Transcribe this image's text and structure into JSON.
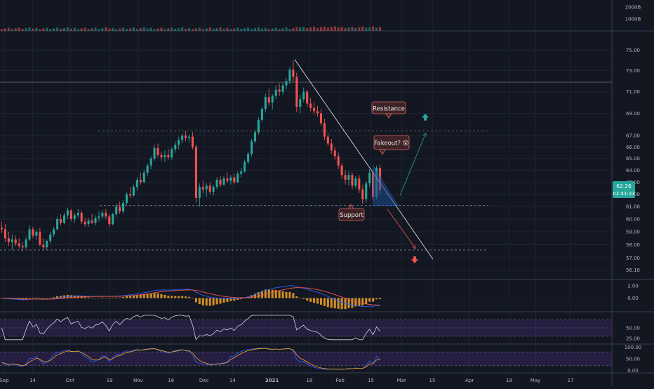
{
  "theme": {
    "background": "#131722",
    "grid": "#1f2433",
    "pane_border": "#363c4e",
    "axis_text": "#b2b5be",
    "up": "#26a69a",
    "down": "#ef5350",
    "level_line": "#b2b5be",
    "trendline": "#d1d4dc",
    "wedge_fill": "#1e4d8c",
    "arrow_up": "#26a69a",
    "arrow_down": "#ef5350",
    "macd_line": "#2962ff",
    "signal_line": "#ef5350",
    "histogram": "#f5a623",
    "rsi_line": "#d1d4dc",
    "band_fill": "#4a2a7a",
    "stoch_k": "#2962ff",
    "stoch_d": "#f5a623",
    "callout_fill": "#3d2226",
    "callout_border": "#e06666",
    "price_tag": "#26a69a"
  },
  "chart_data": [
    {
      "type": "candlestick",
      "pane": "price",
      "x_ticks": [
        "Sep",
        "14",
        "Oct",
        "19",
        "Nov",
        "16",
        "Dec",
        "14",
        "2021",
        "18",
        "Feb",
        "15",
        "Mar",
        "15",
        "Apr",
        "19",
        "May",
        "17"
      ],
      "x_range": [
        "2020-09-01",
        "2021-05-24"
      ],
      "y_ticks": [
        "75.00",
        "73.00",
        "71.00",
        "69.00",
        "67.00",
        "66.00",
        "65.00",
        "64.00",
        "63.00",
        "62.00",
        "61.00",
        "60.00",
        "59.00",
        "58.00",
        "57.00",
        "56.10"
      ],
      "y_scale": "log",
      "y_range": [
        55.5,
        76.8
      ],
      "last_price": "62.26",
      "countdown": "02:41:33",
      "candles": [
        [
          59.3,
          59.8,
          58.9,
          59.2
        ],
        [
          59.2,
          59.6,
          58.2,
          58.5
        ],
        [
          58.5,
          59.0,
          57.9,
          58.2
        ],
        [
          58.2,
          58.8,
          57.6,
          58.4
        ],
        [
          58.4,
          58.7,
          57.9,
          58.1
        ],
        [
          58.1,
          58.5,
          57.7,
          57.9
        ],
        [
          57.9,
          58.2,
          57.5,
          57.8
        ],
        [
          57.8,
          58.6,
          57.7,
          58.4
        ],
        [
          58.4,
          59.5,
          58.3,
          59.2
        ],
        [
          59.2,
          59.4,
          58.5,
          58.7
        ],
        [
          58.7,
          59.2,
          58.4,
          59.0
        ],
        [
          59.0,
          59.3,
          57.9,
          58.0
        ],
        [
          58.0,
          58.5,
          57.6,
          57.8
        ],
        [
          57.8,
          58.4,
          57.6,
          58.3
        ],
        [
          58.3,
          59.0,
          58.1,
          58.8
        ],
        [
          58.8,
          59.4,
          58.6,
          59.2
        ],
        [
          59.2,
          60.2,
          59.1,
          60.0
        ],
        [
          60.0,
          60.4,
          59.5,
          59.7
        ],
        [
          59.7,
          60.5,
          59.6,
          60.3
        ],
        [
          60.3,
          60.9,
          60.0,
          60.7
        ],
        [
          60.7,
          60.8,
          59.8,
          60.0
        ],
        [
          60.0,
          60.5,
          59.7,
          60.3
        ],
        [
          60.3,
          60.8,
          60.1,
          60.5
        ],
        [
          60.5,
          60.7,
          59.6,
          59.8
        ],
        [
          59.8,
          60.1,
          59.4,
          59.6
        ],
        [
          59.6,
          60.1,
          59.4,
          59.9
        ],
        [
          59.9,
          60.4,
          59.6,
          59.7
        ],
        [
          59.7,
          60.3,
          59.5,
          60.1
        ],
        [
          60.1,
          60.6,
          59.8,
          60.2
        ],
        [
          60.2,
          60.7,
          60.0,
          60.5
        ],
        [
          60.5,
          60.8,
          60.0,
          60.2
        ],
        [
          60.2,
          60.4,
          59.4,
          59.6
        ],
        [
          59.6,
          60.5,
          59.5,
          60.4
        ],
        [
          60.4,
          61.2,
          60.2,
          61.0
        ],
        [
          61.0,
          61.4,
          60.4,
          60.6
        ],
        [
          60.6,
          61.5,
          60.5,
          61.3
        ],
        [
          61.3,
          62.2,
          61.1,
          62.0
        ],
        [
          62.0,
          62.6,
          61.7,
          61.9
        ],
        [
          61.9,
          62.8,
          61.8,
          62.6
        ],
        [
          62.6,
          63.4,
          62.3,
          63.2
        ],
        [
          63.2,
          63.8,
          62.8,
          63.0
        ],
        [
          63.0,
          64.0,
          62.9,
          63.8
        ],
        [
          63.8,
          64.6,
          63.5,
          64.4
        ],
        [
          64.4,
          65.2,
          64.1,
          65.0
        ],
        [
          65.0,
          66.2,
          64.8,
          65.9
        ],
        [
          65.9,
          66.3,
          65.1,
          65.3
        ],
        [
          65.3,
          65.6,
          64.8,
          65.1
        ],
        [
          65.1,
          65.7,
          64.7,
          65.3
        ],
        [
          65.3,
          65.8,
          64.9,
          65.1
        ],
        [
          65.1,
          66.0,
          64.9,
          65.8
        ],
        [
          65.8,
          66.5,
          65.5,
          66.2
        ],
        [
          66.2,
          66.9,
          65.8,
          66.6
        ],
        [
          66.6,
          67.2,
          66.3,
          67.0
        ],
        [
          67.0,
          67.4,
          66.5,
          66.8
        ],
        [
          66.8,
          67.1,
          66.4,
          66.9
        ],
        [
          66.9,
          67.3,
          65.8,
          66.0
        ],
        [
          66.0,
          66.2,
          61.3,
          61.7
        ],
        [
          61.7,
          62.9,
          61.0,
          62.6
        ],
        [
          62.6,
          63.1,
          62.1,
          62.4
        ],
        [
          62.4,
          62.9,
          61.8,
          62.7
        ],
        [
          62.7,
          63.0,
          62.0,
          62.2
        ],
        [
          62.2,
          62.8,
          61.9,
          62.6
        ],
        [
          62.6,
          63.4,
          62.4,
          63.2
        ],
        [
          63.2,
          63.5,
          62.6,
          62.8
        ],
        [
          62.8,
          63.5,
          62.7,
          63.3
        ],
        [
          63.3,
          63.8,
          62.9,
          63.1
        ],
        [
          63.1,
          63.6,
          62.8,
          63.4
        ],
        [
          63.4,
          63.7,
          62.8,
          63.0
        ],
        [
          63.0,
          63.9,
          62.9,
          63.7
        ],
        [
          63.7,
          64.2,
          63.4,
          63.9
        ],
        [
          63.9,
          64.9,
          63.8,
          64.7
        ],
        [
          64.7,
          65.6,
          64.5,
          65.4
        ],
        [
          65.4,
          66.7,
          65.2,
          66.5
        ],
        [
          66.5,
          67.5,
          66.3,
          67.3
        ],
        [
          67.3,
          68.6,
          67.1,
          68.4
        ],
        [
          68.4,
          69.6,
          68.2,
          69.4
        ],
        [
          69.4,
          70.8,
          69.1,
          70.5
        ],
        [
          70.5,
          71.3,
          69.7,
          70.0
        ],
        [
          70.0,
          70.8,
          69.4,
          70.6
        ],
        [
          70.6,
          71.6,
          70.3,
          71.2
        ],
        [
          71.2,
          71.8,
          70.6,
          71.0
        ],
        [
          71.0,
          71.9,
          70.7,
          71.6
        ],
        [
          71.6,
          72.3,
          71.2,
          72.0
        ],
        [
          72.0,
          73.4,
          71.7,
          73.1
        ],
        [
          73.1,
          74.0,
          71.9,
          72.4
        ],
        [
          72.4,
          72.8,
          69.1,
          69.6
        ],
        [
          69.6,
          70.7,
          69.0,
          70.3
        ],
        [
          70.3,
          71.4,
          70.0,
          71.0
        ],
        [
          71.0,
          71.2,
          69.6,
          69.9
        ],
        [
          69.9,
          70.4,
          69.2,
          69.5
        ],
        [
          69.5,
          70.0,
          68.9,
          69.2
        ],
        [
          69.2,
          69.7,
          68.7,
          69.0
        ],
        [
          69.0,
          69.4,
          67.9,
          68.1
        ],
        [
          68.1,
          68.5,
          66.6,
          66.9
        ],
        [
          66.9,
          67.2,
          66.1,
          66.3
        ],
        [
          66.3,
          66.7,
          65.4,
          65.7
        ],
        [
          65.7,
          66.0,
          64.9,
          65.2
        ],
        [
          65.2,
          65.5,
          64.1,
          64.4
        ],
        [
          64.4,
          64.6,
          63.3,
          63.6
        ],
        [
          63.6,
          64.0,
          62.8,
          63.2
        ],
        [
          63.2,
          63.9,
          62.7,
          63.6
        ],
        [
          63.6,
          63.8,
          62.4,
          62.7
        ],
        [
          62.7,
          63.5,
          62.5,
          63.3
        ],
        [
          63.3,
          63.6,
          62.1,
          62.4
        ],
        [
          62.4,
          62.8,
          61.2,
          61.6
        ],
        [
          61.6,
          63.1,
          61.3,
          62.9
        ],
        [
          62.9,
          64.1,
          62.6,
          63.8
        ],
        [
          63.8,
          64.0,
          61.5,
          61.8
        ],
        [
          61.8,
          64.4,
          61.6,
          64.2
        ],
        [
          64.2,
          64.5,
          62.0,
          62.3
        ]
      ]
    },
    {
      "type": "bar",
      "pane": "volume",
      "y_ticks": [
        "2000B",
        "1000B"
      ]
    },
    {
      "type": "line",
      "pane": "macd",
      "y_ticks": [
        "2.00",
        "0.00"
      ],
      "y_range": [
        -2.0,
        2.8
      ]
    },
    {
      "type": "line",
      "pane": "rsi",
      "y_ticks": [
        "50.00",
        "25.00"
      ],
      "y_range": [
        15,
        85
      ]
    },
    {
      "type": "line",
      "pane": "stochastic",
      "y_ticks": [
        "100.00",
        "50.00",
        "0.00"
      ],
      "y_range": [
        -5,
        108
      ]
    }
  ],
  "annotations": {
    "resistance": "Resistance",
    "support": "Support",
    "fakeout": "Fakeout? 😲"
  }
}
